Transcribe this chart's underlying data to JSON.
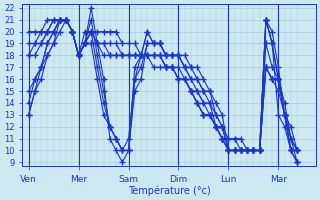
{
  "background_color": "#cde8f0",
  "grid_color": "#aaccd8",
  "line_color": "#1a35cc",
  "marker": "+",
  "marker_size": 4,
  "marker_edge_width": 1.0,
  "line_width": 0.8,
  "ylim": [
    8.7,
    22.3
  ],
  "yticks": [
    9,
    10,
    11,
    12,
    13,
    14,
    15,
    16,
    17,
    18,
    19,
    20,
    21,
    22
  ],
  "xlabel": "Température (°c)",
  "xlabel_fontsize": 7,
  "xtick_fontsize": 6.5,
  "ytick_fontsize": 6,
  "xtick_labels": [
    "Ven",
    "Mer",
    "Sam",
    "Dim",
    "Lun",
    "Mar"
  ],
  "xtick_positions": [
    0,
    8,
    16,
    24,
    32,
    40
  ],
  "xlim": [
    -1,
    46
  ],
  "vlines": [
    0,
    8,
    16,
    24,
    32,
    40
  ],
  "multi_lines": [
    {
      "x": [
        0,
        1,
        2,
        3,
        4,
        5,
        6,
        7,
        8,
        9,
        10,
        11,
        12,
        13,
        14,
        15,
        16,
        17,
        18,
        19,
        20,
        21,
        22,
        23,
        24,
        25,
        26,
        27,
        28,
        29,
        30,
        31,
        32,
        33,
        34,
        35,
        36,
        37,
        38,
        39,
        40,
        41,
        42,
        43
      ],
      "y": [
        15,
        16,
        17,
        18,
        19,
        21,
        21,
        20,
        18,
        19,
        19,
        16,
        13,
        12,
        11,
        10,
        10,
        15,
        16,
        19,
        19,
        19,
        18,
        18,
        18,
        18,
        17,
        17,
        16,
        15,
        14,
        13,
        10,
        10,
        10,
        10,
        10,
        10,
        21,
        20,
        17,
        13,
        10,
        9
      ]
    },
    {
      "x": [
        0,
        1,
        2,
        3,
        4,
        5,
        6,
        7,
        8,
        9,
        10,
        11,
        12,
        13,
        14,
        15,
        16,
        17,
        18,
        19,
        20,
        21,
        22,
        23,
        24,
        25,
        26,
        27,
        28,
        29,
        30,
        31,
        32,
        33,
        34,
        35,
        36,
        37,
        38,
        39,
        40,
        41,
        42,
        43
      ],
      "y": [
        14,
        16,
        17,
        19,
        20,
        21,
        21,
        20,
        18,
        19,
        20,
        17,
        14,
        12,
        11,
        10,
        10,
        16,
        17,
        19,
        19,
        19,
        18,
        18,
        18,
        17,
        17,
        16,
        15,
        15,
        13,
        12,
        10,
        10,
        10,
        10,
        10,
        10,
        21,
        19,
        16,
        13,
        10,
        9
      ]
    },
    {
      "x": [
        0,
        1,
        2,
        3,
        4,
        5,
        6,
        7,
        8,
        9,
        10,
        11,
        12,
        13,
        14,
        15,
        16,
        17,
        18,
        19,
        20,
        21,
        22,
        23,
        24,
        25,
        26,
        27,
        28,
        29,
        30,
        31,
        32,
        33,
        34,
        35,
        36,
        37,
        38,
        39,
        40,
        41,
        42,
        43
      ],
      "y": [
        13,
        15,
        17,
        19,
        20,
        21,
        21,
        20,
        18,
        19,
        21,
        18,
        15,
        12,
        11,
        10,
        11,
        16,
        18,
        20,
        19,
        19,
        18,
        18,
        18,
        17,
        16,
        16,
        15,
        14,
        13,
        12,
        10,
        10,
        10,
        10,
        10,
        10,
        21,
        19,
        16,
        13,
        10,
        10
      ]
    },
    {
      "x": [
        0,
        1,
        2,
        3,
        4,
        5,
        6,
        7,
        8,
        9,
        10,
        11,
        12,
        13,
        14,
        15,
        16,
        17,
        18,
        19,
        20,
        21,
        22,
        23,
        24,
        25,
        26,
        27,
        28,
        29,
        30,
        31,
        32,
        33,
        34,
        35,
        36,
        37,
        38,
        39,
        40,
        41,
        42,
        43
      ],
      "y": [
        13,
        15,
        16,
        18,
        19,
        20,
        21,
        20,
        18,
        19,
        22,
        19,
        16,
        11,
        10,
        9,
        10,
        17,
        18,
        20,
        19,
        19,
        18,
        18,
        18,
        17,
        16,
        15,
        14,
        14,
        12,
        11,
        10,
        10,
        10,
        10,
        10,
        10,
        21,
        19,
        13,
        12,
        10,
        10
      ]
    },
    {
      "x": [
        0,
        1,
        2,
        3,
        4,
        5,
        6,
        7,
        8,
        9,
        10,
        11,
        12,
        13,
        14,
        15,
        16,
        17,
        18,
        19,
        20,
        21,
        22,
        23,
        24,
        25,
        26,
        27,
        28,
        29,
        30,
        31,
        32,
        33,
        34,
        35,
        36,
        37,
        38,
        39,
        40,
        41,
        42,
        43
      ],
      "y": [
        18,
        18,
        19,
        20,
        21,
        21,
        21,
        20,
        18,
        19,
        20,
        19,
        18,
        18,
        18,
        18,
        18,
        18,
        18,
        18,
        18,
        18,
        17,
        17,
        17,
        16,
        15,
        15,
        14,
        13,
        12,
        11,
        10,
        10,
        10,
        10,
        10,
        10,
        19,
        17,
        16,
        13,
        11,
        9
      ]
    },
    {
      "x": [
        0,
        1,
        2,
        3,
        4,
        5,
        6,
        7,
        8,
        9,
        10,
        11,
        12,
        13,
        14,
        15,
        16,
        17,
        18,
        19,
        20,
        21,
        22,
        23,
        24,
        25,
        26,
        27,
        28,
        29,
        30,
        31,
        32,
        33,
        34,
        35,
        36,
        37,
        38,
        39,
        40,
        41,
        42,
        43
      ],
      "y": [
        19,
        19,
        20,
        20,
        21,
        21,
        21,
        20,
        18,
        19,
        19,
        19,
        19,
        19,
        19,
        18,
        18,
        18,
        18,
        18,
        18,
        18,
        17,
        17,
        16,
        16,
        15,
        14,
        13,
        13,
        12,
        11,
        10,
        10,
        10,
        10,
        10,
        10,
        17,
        16,
        16,
        13,
        11,
        10
      ]
    },
    {
      "x": [
        0,
        1,
        2,
        3,
        4,
        5,
        6,
        7,
        8,
        9,
        10,
        11,
        12,
        13,
        14,
        15,
        16,
        17,
        18,
        19,
        20,
        21,
        22,
        23,
        24,
        25,
        26,
        27,
        28,
        29,
        30,
        31,
        32,
        33,
        34,
        35,
        36,
        37,
        38,
        39,
        40,
        41,
        42,
        43
      ],
      "y": [
        20,
        20,
        20,
        21,
        21,
        21,
        21,
        20,
        18,
        19,
        20,
        20,
        20,
        20,
        20,
        19,
        19,
        19,
        18,
        18,
        18,
        18,
        17,
        17,
        16,
        16,
        15,
        14,
        13,
        13,
        12,
        11,
        11,
        11,
        10,
        10,
        10,
        10,
        17,
        16,
        16,
        14,
        11,
        10
      ]
    },
    {
      "x": [
        0,
        1,
        2,
        3,
        4,
        5,
        6,
        7,
        8,
        9,
        10,
        11,
        12,
        13,
        14,
        15,
        16,
        17,
        18,
        19,
        20,
        21,
        22,
        23,
        24,
        25,
        26,
        27,
        28,
        29,
        30,
        31,
        32,
        33,
        34,
        35,
        36,
        37,
        38,
        39,
        40,
        41,
        42,
        43
      ],
      "y": [
        18,
        19,
        19,
        20,
        20,
        21,
        21,
        20,
        18,
        20,
        20,
        19,
        19,
        18,
        18,
        18,
        18,
        18,
        18,
        18,
        17,
        17,
        17,
        17,
        16,
        16,
        15,
        14,
        13,
        13,
        12,
        12,
        11,
        11,
        11,
        10,
        10,
        10,
        17,
        16,
        15,
        13,
        12,
        10
      ]
    }
  ]
}
